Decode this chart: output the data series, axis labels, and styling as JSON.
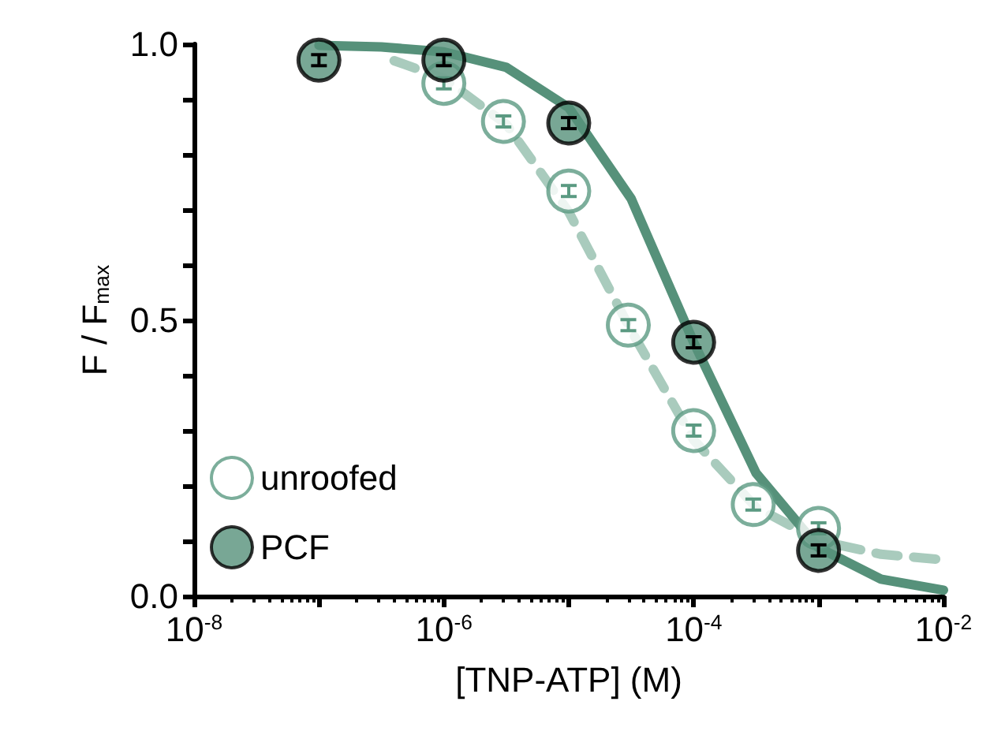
{
  "chart_data": {
    "type": "scatter",
    "xlabel": "[TNP-ATP] (M)",
    "ylabel": "F / F$_{max}$",
    "log": "x",
    "xlim": [
      1e-08,
      0.01
    ],
    "ylim": [
      0,
      1.0
    ],
    "xticks": [
      {
        "value": 1e-08,
        "label": "10$^{-8}$"
      },
      {
        "value": 1e-07,
        "label": null
      },
      {
        "value": 1e-06,
        "label": "10$^{-6}$"
      },
      {
        "value": 1e-05,
        "label": null
      },
      {
        "value": 0.0001,
        "label": "10$^{-4}$"
      },
      {
        "value": 0.001,
        "label": null
      },
      {
        "value": 0.01,
        "label": "10$^{-2}$"
      }
    ],
    "yticks": [
      {
        "value": 0,
        "label": "0.0"
      },
      {
        "value": 0.1,
        "label": null
      },
      {
        "value": 0.2,
        "label": null
      },
      {
        "value": 0.3,
        "label": null
      },
      {
        "value": 0.4,
        "label": null
      },
      {
        "value": 0.5,
        "label": "0.5"
      },
      {
        "value": 0.6,
        "label": null
      },
      {
        "value": 0.7,
        "label": null
      },
      {
        "value": 0.8,
        "label": null
      },
      {
        "value": 0.9,
        "label": null
      },
      {
        "value": 1.0,
        "label": "1.0"
      }
    ],
    "grid": false,
    "legend": "bottom left",
    "series": [
      {
        "type": "line",
        "color": "#a9cbbd",
        "line_style": "dashed",
        "marker": "none",
        "x": [
          4e-07,
          1e-06,
          3.16e-06,
          1e-05,
          3.16e-05,
          0.0001,
          0.000316,
          0.001,
          0.00316,
          0.01
        ],
        "values": [
          0.97,
          0.938,
          0.855,
          0.696,
          0.481,
          0.283,
          0.161,
          0.101,
          0.076,
          0.066
        ]
      },
      {
        "type": "line",
        "color": "#56917a",
        "line_style": "solid",
        "marker": "none",
        "x": [
          1e-07,
          3.16e-07,
          1e-06,
          3.16e-06,
          1e-05,
          3.16e-05,
          0.0001,
          0.000316,
          0.001,
          0.00316,
          0.01
        ],
        "values": [
          0.998,
          0.995,
          0.986,
          0.958,
          0.885,
          0.72,
          0.46,
          0.223,
          0.088,
          0.031,
          0.011
        ]
      },
      {
        "name": "unroofed",
        "color": "#5b9a82",
        "marker": "emptyCircle",
        "x": [
          1e-06,
          3e-06,
          1e-05,
          3e-05,
          0.0001,
          0.0003,
          0.001
        ],
        "values": [
          0.929,
          0.86,
          0.734,
          0.491,
          0.3,
          0.166,
          0.123
        ],
        "errors": [
          0.01,
          0.01,
          0.01,
          0.01,
          0.01,
          0.01,
          0.01
        ]
      },
      {
        "name": "PCF",
        "color": "#56917a",
        "marker": "circle",
        "x": [
          1e-07,
          1e-06,
          1e-05,
          0.0001,
          0.001
        ],
        "values": [
          0.971,
          0.971,
          0.857,
          0.46,
          0.083
        ],
        "errors": [
          0.01,
          0.01,
          0.01,
          0.01,
          0.01
        ]
      }
    ]
  }
}
